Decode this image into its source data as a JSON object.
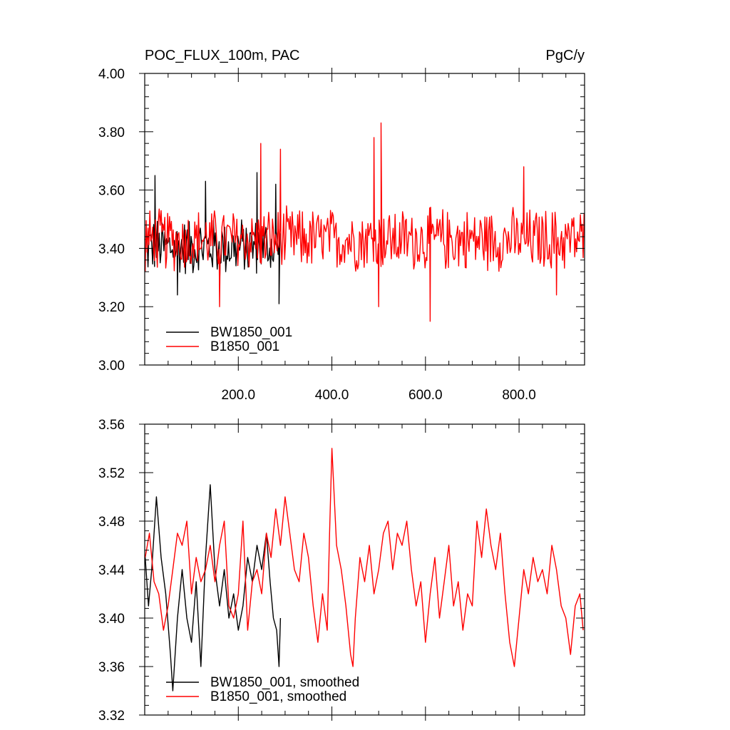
{
  "chart_data": [
    {
      "type": "line",
      "title": "POC_FLUX_100m, PAC",
      "units_label": "PgC/y",
      "xlim": [
        0,
        940
      ],
      "ylim": [
        3.0,
        4.0
      ],
      "y_ticks": [
        "3.00",
        "3.20",
        "3.40",
        "3.60",
        "3.80",
        "4.00"
      ],
      "x_ticks": [
        "200.0",
        "400.0",
        "600.0",
        "800.0"
      ],
      "x_tick_values": [
        200,
        400,
        600,
        800
      ],
      "legend_position": "bottom-left",
      "grid": false,
      "series": [
        {
          "name": "BW1850_001",
          "color": "#000000",
          "x": [
            1,
            20,
            40,
            60,
            80,
            100,
            120,
            140,
            160,
            180,
            200,
            220,
            240,
            260,
            280,
            290
          ],
          "y": [
            3.4,
            3.52,
            3.38,
            3.46,
            3.32,
            3.44,
            3.36,
            3.42,
            3.34,
            3.46,
            3.38,
            3.4,
            3.44,
            3.36,
            3.42,
            3.26
          ],
          "mean": 3.405,
          "amplitude": 0.11,
          "x_range": [
            1,
            290
          ],
          "peaks": [
            {
              "x": 22,
              "y": 3.65
            },
            {
              "x": 130,
              "y": 3.63
            },
            {
              "x": 240,
              "y": 3.66
            },
            {
              "x": 280,
              "y": 3.62
            }
          ],
          "troughs": [
            {
              "x": 70,
              "y": 3.24
            },
            {
              "x": 160,
              "y": 3.27
            },
            {
              "x": 287,
              "y": 3.21
            }
          ]
        },
        {
          "name": "B1850_001",
          "color": "#ff0000",
          "mean": 3.43,
          "amplitude": 0.12,
          "x_range": [
            1,
            940
          ],
          "peaks": [
            {
              "x": 248,
              "y": 3.76
            },
            {
              "x": 290,
              "y": 3.74
            },
            {
              "x": 490,
              "y": 3.78
            },
            {
              "x": 505,
              "y": 3.83
            },
            {
              "x": 810,
              "y": 3.68
            }
          ],
          "troughs": [
            {
              "x": 160,
              "y": 3.2
            },
            {
              "x": 500,
              "y": 3.2
            },
            {
              "x": 610,
              "y": 3.15
            },
            {
              "x": 880,
              "y": 3.24
            }
          ]
        }
      ]
    },
    {
      "type": "line",
      "xlim": [
        0,
        940
      ],
      "ylim": [
        3.32,
        3.56
      ],
      "y_ticks": [
        "3.32",
        "3.36",
        "3.40",
        "3.44",
        "3.48",
        "3.52",
        "3.56"
      ],
      "x_tick_values": [
        200,
        400,
        600,
        800
      ],
      "legend_position": "bottom-left",
      "grid": false,
      "series": [
        {
          "name": "BW1850_001, smoothed",
          "color": "#000000",
          "x": [
            1,
            8,
            15,
            25,
            35,
            45,
            55,
            60,
            70,
            80,
            90,
            100,
            110,
            120,
            130,
            140,
            150,
            160,
            170,
            180,
            190,
            200,
            210,
            220,
            230,
            240,
            250,
            260,
            268,
            275,
            282,
            287,
            290
          ],
          "y": [
            3.45,
            3.41,
            3.44,
            3.5,
            3.45,
            3.42,
            3.37,
            3.34,
            3.4,
            3.44,
            3.4,
            3.38,
            3.43,
            3.36,
            3.45,
            3.51,
            3.44,
            3.41,
            3.44,
            3.4,
            3.42,
            3.39,
            3.41,
            3.45,
            3.43,
            3.46,
            3.44,
            3.47,
            3.43,
            3.4,
            3.39,
            3.36,
            3.4
          ]
        },
        {
          "name": "B1850_001, smoothed",
          "color": "#ff0000",
          "x": [
            1,
            10,
            20,
            30,
            40,
            50,
            60,
            70,
            80,
            90,
            100,
            110,
            120,
            130,
            140,
            150,
            160,
            170,
            180,
            190,
            200,
            210,
            220,
            230,
            240,
            250,
            260,
            270,
            280,
            290,
            300,
            310,
            320,
            330,
            340,
            350,
            360,
            370,
            380,
            390,
            395,
            400,
            410,
            420,
            430,
            440,
            445,
            450,
            460,
            470,
            480,
            490,
            500,
            510,
            520,
            530,
            540,
            550,
            560,
            570,
            580,
            590,
            600,
            610,
            620,
            630,
            640,
            650,
            660,
            670,
            680,
            690,
            700,
            710,
            720,
            730,
            740,
            750,
            760,
            770,
            780,
            790,
            800,
            810,
            820,
            830,
            840,
            850,
            860,
            870,
            880,
            890,
            900,
            910,
            920,
            930,
            937
          ],
          "y": [
            3.45,
            3.47,
            3.43,
            3.42,
            3.39,
            3.41,
            3.44,
            3.47,
            3.46,
            3.48,
            3.42,
            3.45,
            3.43,
            3.44,
            3.46,
            3.43,
            3.46,
            3.48,
            3.41,
            3.4,
            3.42,
            3.48,
            3.39,
            3.43,
            3.44,
            3.42,
            3.47,
            3.45,
            3.49,
            3.46,
            3.5,
            3.47,
            3.44,
            3.43,
            3.47,
            3.45,
            3.41,
            3.38,
            3.42,
            3.39,
            3.47,
            3.54,
            3.46,
            3.44,
            3.41,
            3.37,
            3.36,
            3.4,
            3.45,
            3.43,
            3.46,
            3.42,
            3.44,
            3.47,
            3.48,
            3.44,
            3.47,
            3.46,
            3.48,
            3.44,
            3.41,
            3.43,
            3.38,
            3.42,
            3.45,
            3.4,
            3.43,
            3.46,
            3.41,
            3.43,
            3.39,
            3.42,
            3.41,
            3.48,
            3.45,
            3.49,
            3.46,
            3.44,
            3.47,
            3.42,
            3.38,
            3.36,
            3.4,
            3.44,
            3.42,
            3.45,
            3.43,
            3.44,
            3.42,
            3.46,
            3.44,
            3.41,
            3.4,
            3.37,
            3.41,
            3.42,
            3.39
          ]
        }
      ]
    }
  ]
}
